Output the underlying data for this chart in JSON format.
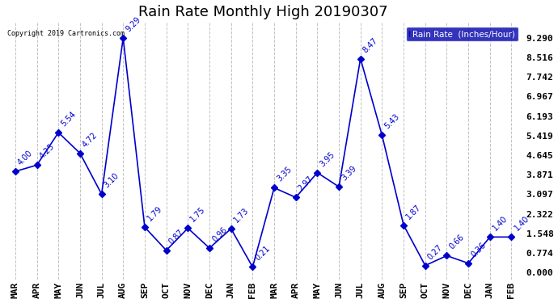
{
  "title": "Rain Rate Monthly High 20190307",
  "copyright": "Copyright 2019 Cartronics.com",
  "months": [
    "MAR",
    "APR",
    "MAY",
    "JUN",
    "JUL",
    "AUG",
    "SEP",
    "OCT",
    "NOV",
    "DEC",
    "JAN",
    "FEB",
    "MAR",
    "APR",
    "MAY",
    "JUN",
    "JUL",
    "AUG",
    "SEP",
    "OCT",
    "NOV",
    "DEC",
    "JAN",
    "FEB"
  ],
  "values": [
    4.0,
    4.25,
    5.54,
    4.72,
    3.1,
    9.29,
    1.79,
    0.87,
    1.75,
    0.96,
    1.73,
    0.21,
    3.35,
    2.97,
    3.95,
    3.39,
    8.47,
    5.43,
    1.87,
    0.27,
    0.66,
    0.36,
    1.4,
    1.4
  ],
  "yticks": [
    0.0,
    0.774,
    1.548,
    2.322,
    3.097,
    3.871,
    4.645,
    5.419,
    6.193,
    6.967,
    7.742,
    8.516,
    9.29
  ],
  "line_color": "#0000cc",
  "marker_size": 4,
  "label_fontsize": 7.0,
  "title_fontsize": 13,
  "tick_fontsize": 8,
  "background_color": "#ffffff",
  "grid_color": "#bbbbbb",
  "legend_bg": "#0000aa",
  "legend_text": "Rain Rate  (Inches/Hour)",
  "legend_text_color": "#ffffff"
}
